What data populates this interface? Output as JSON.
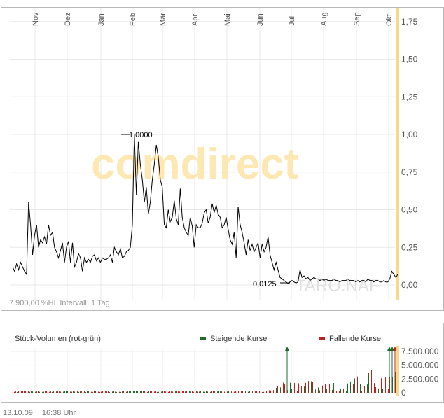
{
  "chart_data": [
    {
      "type": "line",
      "x_labels": [
        "Nov",
        "Dez",
        "Jan",
        "Feb",
        "Mär",
        "Apr",
        "Mai",
        "Jun",
        "Jul",
        "Aug",
        "Sep",
        "Okt"
      ],
      "y_ticks": [
        "1,75",
        "1,50",
        "1,25",
        "1,00",
        "0,75",
        "0,50",
        "0,25",
        "0,00"
      ],
      "y_tick_values": [
        1.75,
        1.5,
        1.25,
        1.0,
        0.75,
        0.5,
        0.25,
        0.0
      ],
      "ylim": [
        0,
        1.8
      ],
      "grid": true,
      "max_label": "1,0000",
      "min_label": "0,0125",
      "footnote": "7.900,00 %HL Intervall: 1 Tag",
      "watermark": "comdirect",
      "source_watermark": "TARO.NAF",
      "series": [
        {
          "values": [
            0.12,
            0.09,
            0.14,
            0.1,
            0.15,
            0.12,
            0.09,
            0.07,
            0.55,
            0.4,
            0.2,
            0.33,
            0.4,
            0.25,
            0.3,
            0.28,
            0.32,
            0.27,
            0.4,
            0.33,
            0.35,
            0.25,
            0.22,
            0.18,
            0.23,
            0.28,
            0.15,
            0.25,
            0.29,
            0.15,
            0.28,
            0.12,
            0.15,
            0.21,
            0.18,
            0.09,
            0.18,
            0.15,
            0.17,
            0.15,
            0.19,
            0.2,
            0.16,
            0.18,
            0.15,
            0.18,
            0.17,
            0.17,
            0.18,
            0.2,
            0.15,
            0.25,
            0.22,
            0.2,
            0.24,
            0.18,
            0.19,
            0.22,
            0.23,
            0.25,
            0.4,
            1.0,
            0.6,
            0.95,
            0.8,
            0.7,
            0.55,
            0.65,
            0.47,
            0.55,
            0.7,
            0.8,
            0.93,
            0.85,
            0.7,
            0.65,
            0.4,
            0.38,
            0.5,
            0.42,
            0.45,
            0.56,
            0.44,
            0.4,
            0.64,
            0.45,
            0.38,
            0.35,
            0.33,
            0.45,
            0.39,
            0.25,
            0.4,
            0.38,
            0.38,
            0.41,
            0.48,
            0.5,
            0.41,
            0.45,
            0.54,
            0.48,
            0.53,
            0.47,
            0.45,
            0.38,
            0.4,
            0.45,
            0.37,
            0.3,
            0.27,
            0.35,
            0.18,
            0.52,
            0.4,
            0.35,
            0.28,
            0.2,
            0.3,
            0.23,
            0.27,
            0.22,
            0.25,
            0.28,
            0.18,
            0.27,
            0.22,
            0.25,
            0.32,
            0.2,
            0.15,
            0.1,
            0.15,
            0.1,
            0.05,
            0.04,
            0.03,
            0.02,
            0.01,
            0.02,
            0.03,
            0.02,
            0.0125,
            0.02,
            0.1,
            0.05,
            0.06,
            0.04,
            0.05,
            0.03,
            0.04,
            0.05,
            0.04,
            0.04,
            0.03,
            0.04,
            0.03,
            0.04,
            0.03,
            0.03,
            0.03,
            0.04,
            0.03,
            0.03,
            0.02,
            0.03,
            0.03,
            0.03,
            0.04,
            0.03,
            0.03,
            0.03,
            0.02,
            0.03,
            0.02,
            0.03,
            0.03,
            0.02,
            0.04,
            0.03,
            0.03,
            0.02,
            0.03,
            0.03,
            0.02,
            0.02,
            0.03,
            0.02,
            0.02,
            0.04,
            0.09,
            0.07,
            0.05,
            0.07
          ]
        }
      ]
    },
    {
      "type": "bar",
      "title": "Stück-Volumen (rot-grün)",
      "legend": [
        {
          "name": "Steigende Kurse",
          "color": "#1b6b2f"
        },
        {
          "name": "Fallende Kurse",
          "color": "#c0201b"
        }
      ],
      "y_ticks": [
        "7.500.000",
        "5.000.000",
        "2.500.000",
        "0"
      ],
      "y_tick_values": [
        7500000,
        5000000,
        2500000,
        0
      ],
      "ylim": [
        0,
        8000000
      ]
    }
  ],
  "footer": {
    "date": "13.10.09",
    "time": "16:38 Uhr"
  },
  "colors": {
    "line": "#000000",
    "grid": "#e5e5e5",
    "axis_text": "#555555",
    "marker": "#f7d98b",
    "rise": "#1b6b2f",
    "fall": "#c0201b",
    "watermark_orange": "#fde7b3",
    "watermark_grey": "#e3e3e3"
  }
}
